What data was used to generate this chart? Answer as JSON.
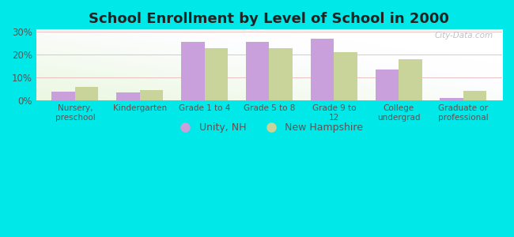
{
  "title": "School Enrollment by Level of School in 2000",
  "categories": [
    "Nursery,\npreschool",
    "Kindergarten",
    "Grade 1 to 4",
    "Grade 5 to 8",
    "Grade 9 to\n12",
    "College\nundergrad",
    "Graduate or\nprofessional"
  ],
  "unity_nh": [
    4.0,
    3.7,
    25.5,
    25.5,
    27.0,
    13.5,
    1.0
  ],
  "new_hampshire": [
    6.0,
    4.7,
    23.0,
    23.0,
    21.0,
    18.0,
    4.2
  ],
  "unity_color": "#c9a0dc",
  "nh_color": "#c8d49a",
  "background_color": "#00e8e8",
  "ylim": [
    0,
    31
  ],
  "yticks": [
    0,
    10,
    20,
    30
  ],
  "ytick_labels": [
    "0%",
    "10%",
    "20%",
    "30%"
  ],
  "legend_unity": "Unity, NH",
  "legend_nh": "New Hampshire",
  "watermark": "City-Data.com",
  "bar_width": 0.36,
  "tick_fontsize": 8.5,
  "title_fontsize": 13
}
